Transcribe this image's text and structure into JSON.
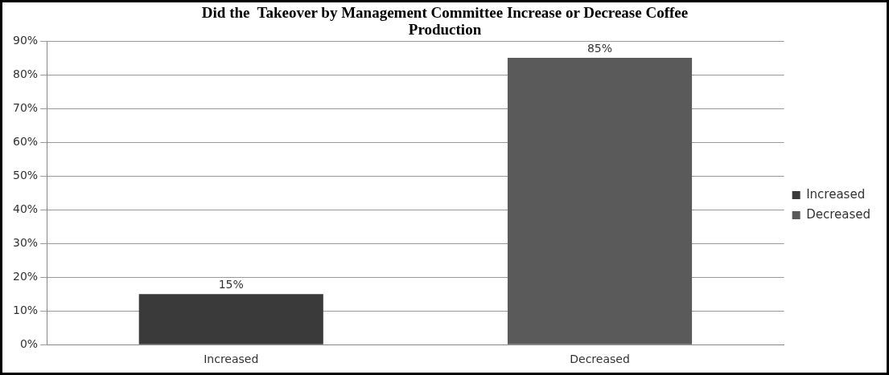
{
  "chart_data": {
    "type": "bar",
    "title": "Did the  Takeover by Management Committee Increase or Decrease Coffee Production",
    "categories": [
      "Increased",
      "Decreased"
    ],
    "series": [
      {
        "name": "Increased",
        "color": "#3a3a3a",
        "values": [
          15,
          null
        ],
        "value_labels": [
          "15%",
          null
        ]
      },
      {
        "name": "Decreased",
        "color": "#5a5a5a",
        "values": [
          null,
          85
        ],
        "value_labels": [
          null,
          "85%"
        ]
      }
    ],
    "ylim": [
      0,
      90
    ],
    "yticks": [
      {
        "value": 0,
        "label": "0%"
      },
      {
        "value": 10,
        "label": "10%"
      },
      {
        "value": 20,
        "label": "20%"
      },
      {
        "value": 30,
        "label": "30%"
      },
      {
        "value": 40,
        "label": "40%"
      },
      {
        "value": 50,
        "label": "50%"
      },
      {
        "value": 60,
        "label": "60%"
      },
      {
        "value": 70,
        "label": "70%"
      },
      {
        "value": 80,
        "label": "80%"
      },
      {
        "value": 90,
        "label": "90%"
      }
    ],
    "grid": "y",
    "legend": "right"
  }
}
